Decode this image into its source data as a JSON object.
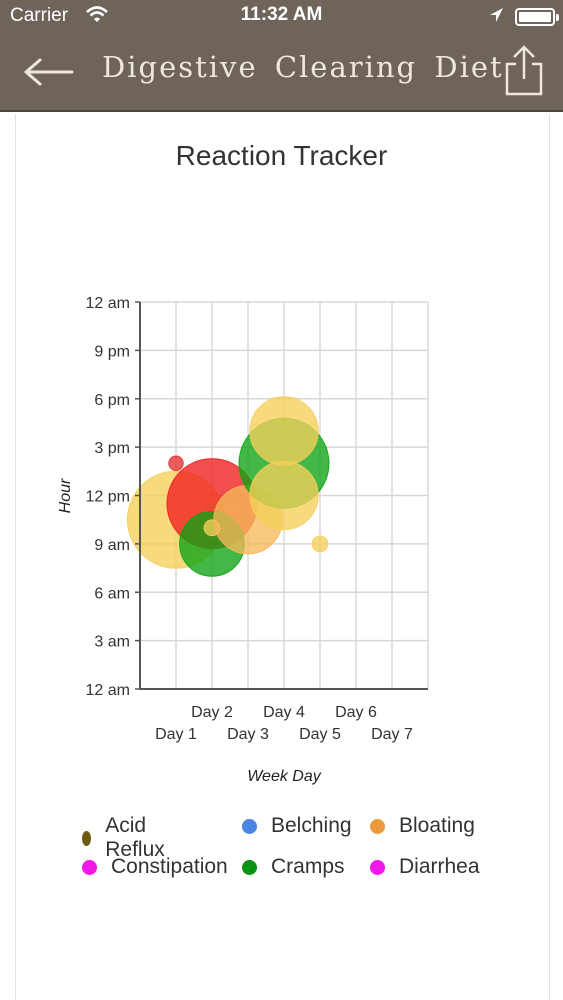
{
  "status_bar": {
    "carrier": "Carrier",
    "time": "11:32 AM"
  },
  "nav": {
    "title": "Digestive Clearing Diet",
    "back_icon": "back-arrow-icon",
    "share_icon": "share-icon"
  },
  "page_title": "Reaction Tracker",
  "chart_data": {
    "type": "bubble",
    "xlabel": "Week Day",
    "ylabel": "Hour",
    "x_categories": [
      "Day 1",
      "Day 2",
      "Day 3",
      "Day 4",
      "Day 5",
      "Day 6",
      "Day 7"
    ],
    "x_range": [
      0,
      8
    ],
    "y_ticks": [
      "12 am",
      "3 am",
      "6 am",
      "9 am",
      "12 pm",
      "3 pm",
      "6 pm",
      "9 pm",
      "12 am"
    ],
    "y_range_hours": [
      0,
      24
    ],
    "grid": true,
    "bubbles": [
      {
        "x": 1.0,
        "y": 10.5,
        "r": 1.35,
        "color": "#f5cf5a"
      },
      {
        "x": 1.0,
        "y": 14.0,
        "r": 0.2,
        "color": "#e83030"
      },
      {
        "x": 2.0,
        "y": 11.5,
        "r": 1.25,
        "color": "#f01e1e"
      },
      {
        "x": 2.0,
        "y": 9.0,
        "r": 0.9,
        "color": "#0ea313"
      },
      {
        "x": 2.0,
        "y": 10.0,
        "r": 0.22,
        "color": "#f5cf5a"
      },
      {
        "x": 3.0,
        "y": 10.5,
        "r": 0.95,
        "color": "#f5b85a"
      },
      {
        "x": 4.0,
        "y": 14.0,
        "r": 1.25,
        "color": "#0ea313"
      },
      {
        "x": 4.0,
        "y": 12.0,
        "r": 0.95,
        "color": "#f5cf5a"
      },
      {
        "x": 4.0,
        "y": 16.0,
        "r": 0.95,
        "color": "#f5cf5a"
      },
      {
        "x": 5.0,
        "y": 9.0,
        "r": 0.22,
        "color": "#f5cf5a"
      }
    ]
  },
  "legend": [
    {
      "label": "Acid Reflux",
      "color": "#6e5a10"
    },
    {
      "label": "Belching",
      "color": "#4a86e0"
    },
    {
      "label": "Bloating",
      "color": "#e89a3c"
    },
    {
      "label": "Constipation",
      "color": "#f019e6"
    },
    {
      "label": "Cramps",
      "color": "#0b9414"
    },
    {
      "label": "Diarrhea",
      "color": "#ee19e6"
    }
  ]
}
